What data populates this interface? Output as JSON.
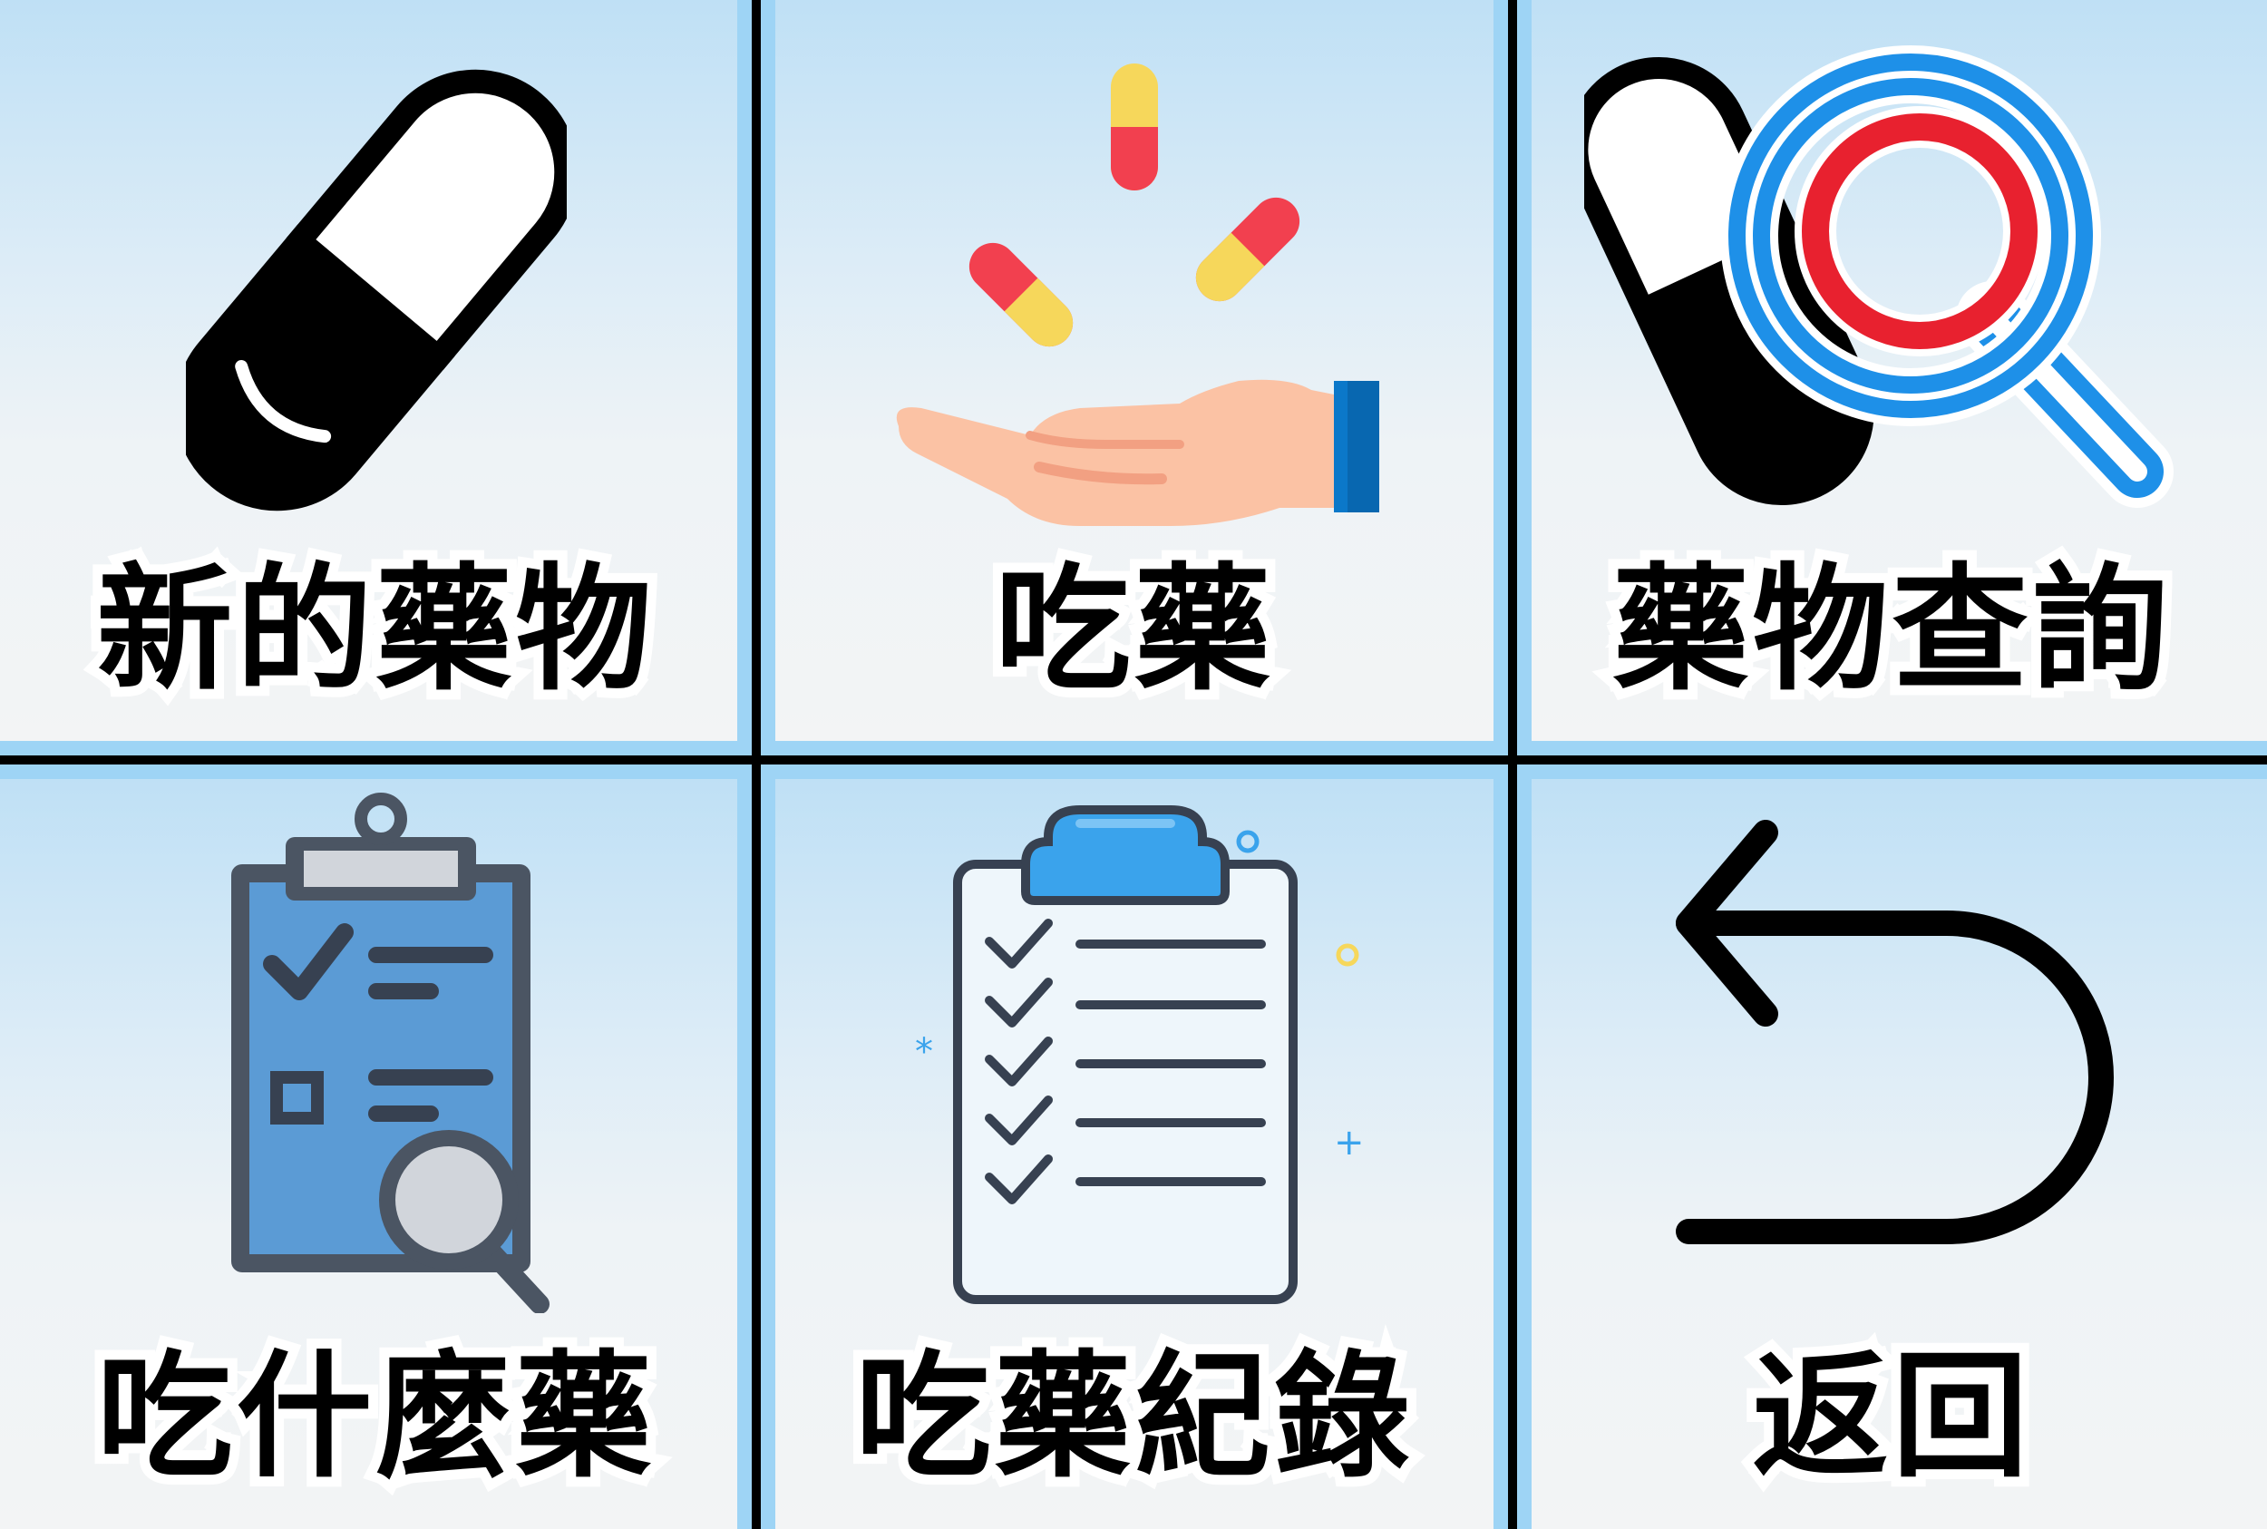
{
  "menu": {
    "tiles": [
      {
        "label": "新的藥物",
        "icon": "capsule-icon"
      },
      {
        "label": "吃藥",
        "icon": "pills-on-hand-icon"
      },
      {
        "label": "藥物查詢",
        "icon": "capsule-search-icon"
      },
      {
        "label": "吃什麼藥",
        "icon": "clipboard-search-icon"
      },
      {
        "label": "吃藥紀錄",
        "icon": "checklist-clipboard-icon"
      },
      {
        "label": "返回",
        "icon": "back-arrow-icon"
      }
    ]
  },
  "colors": {
    "frame": "#9ed4f5",
    "divider": "#000000",
    "pill_red": "#f2404f",
    "pill_yellow": "#f6d75b",
    "search_blue": "#1e90e8",
    "search_red": "#e8212f",
    "clipboard_blue": "#5b9bd5",
    "clip_blue": "#3aa3ec"
  }
}
